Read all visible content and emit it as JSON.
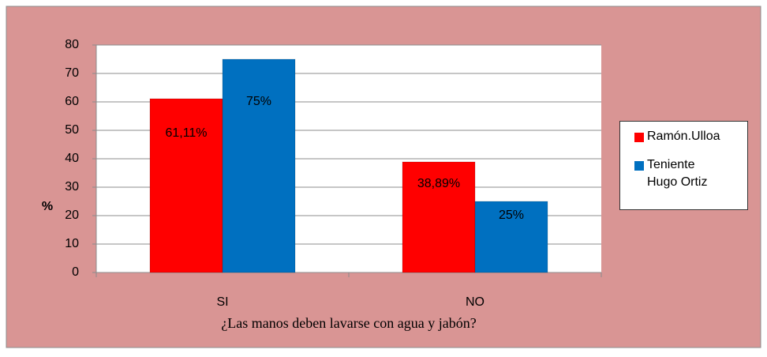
{
  "chart_data": {
    "type": "bar",
    "x_label": "¿Las manos deben lavarse con agua y jabón?",
    "y_label": "%",
    "categories": [
      "SI",
      "NO"
    ],
    "series": [
      {
        "name": "Ramón.Ulloa",
        "color": "#ff0000",
        "values": [
          61.11,
          38.89
        ],
        "value_labels": [
          "61,11%",
          "38,89%"
        ]
      },
      {
        "name": "Teniente Hugo Ortiz",
        "color": "#0070c0",
        "values": [
          75,
          25
        ],
        "value_labels": [
          "75%",
          "25%"
        ]
      }
    ],
    "ylim": [
      0,
      80
    ],
    "yticks": [
      0,
      10,
      20,
      30,
      40,
      50,
      60,
      70,
      80
    ],
    "grid": true,
    "legend": "right"
  }
}
